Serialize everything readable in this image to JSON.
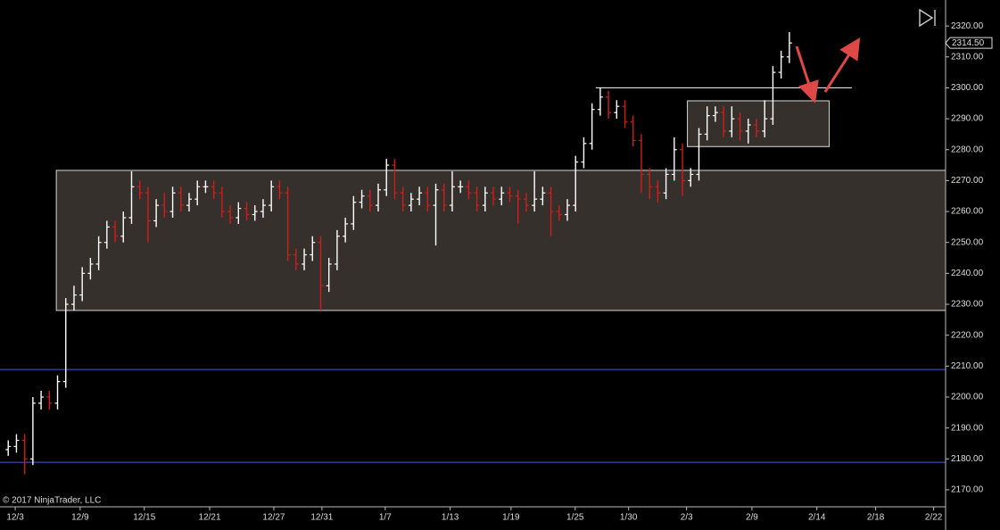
{
  "chart_data": {
    "type": "ohlc",
    "copyright": "© 2017 NinjaTrader, LLC",
    "up_color": "#ffffff",
    "down_color": "#d01c1c",
    "xlim": [
      0,
      230
    ],
    "ylim": [
      2164.5,
      2328.4
    ],
    "xticks": [
      {
        "value": 3.7,
        "label": "12/3"
      },
      {
        "value": 19.5,
        "label": "12/9"
      },
      {
        "value": 35.1,
        "label": "12/15"
      },
      {
        "value": 51,
        "label": "12/21"
      },
      {
        "value": 66.6,
        "label": "12/27"
      },
      {
        "value": 78.3,
        "label": "12/31"
      },
      {
        "value": 93.7,
        "label": "1/7"
      },
      {
        "value": 109.5,
        "label": "1/13"
      },
      {
        "value": 124.3,
        "label": "1/19"
      },
      {
        "value": 139.9,
        "label": "1/25"
      },
      {
        "value": 152.9,
        "label": "1/30"
      },
      {
        "value": 167,
        "label": "2/3"
      },
      {
        "value": 182.9,
        "label": "2/9"
      },
      {
        "value": 198.7,
        "label": "2/14"
      },
      {
        "value": 213,
        "label": "2/18"
      },
      {
        "value": 227.1,
        "label": "2/22"
      }
    ],
    "yticks": [
      {
        "value": 2170,
        "label": "2170.00"
      },
      {
        "value": 2180,
        "label": "2180.00"
      },
      {
        "value": 2190,
        "label": "2190.00"
      },
      {
        "value": 2200,
        "label": "2200.00"
      },
      {
        "value": 2210,
        "label": "2210.00"
      },
      {
        "value": 2220,
        "label": "2220.00"
      },
      {
        "value": 2230,
        "label": "2230.00"
      },
      {
        "value": 2240,
        "label": "2240.00"
      },
      {
        "value": 2250,
        "label": "2250.00"
      },
      {
        "value": 2260,
        "label": "2260.00"
      },
      {
        "value": 2270,
        "label": "2270.00"
      },
      {
        "value": 2280,
        "label": "2280.00"
      },
      {
        "value": 2290,
        "label": "2290.00"
      },
      {
        "value": 2300,
        "label": "2300.00"
      },
      {
        "value": 2310,
        "label": "2310.00"
      },
      {
        "value": 2320,
        "label": "2320.00"
      }
    ],
    "last_price": {
      "value": 2314.5,
      "label": "2314.50"
    },
    "x": [
      2,
      4,
      6,
      8,
      10,
      12,
      14,
      16,
      18,
      20,
      22,
      24,
      26,
      28,
      30,
      32,
      34,
      36,
      38,
      40,
      42,
      44,
      46,
      48,
      50,
      52,
      54,
      56,
      58,
      60,
      62,
      64,
      66,
      68,
      70,
      72,
      74,
      76,
      78,
      80,
      82,
      84,
      86,
      88,
      90,
      92,
      94,
      96,
      98,
      100,
      102,
      104,
      106,
      108,
      110,
      112,
      114,
      116,
      118,
      120,
      122,
      124,
      126,
      128,
      130,
      132,
      134,
      136,
      138,
      140,
      142,
      144,
      146,
      148,
      150,
      152,
      154,
      156,
      158,
      160,
      162,
      164,
      166,
      168,
      170,
      172,
      174,
      176,
      178,
      180,
      182,
      184,
      186,
      188,
      190,
      192
    ],
    "open": [
      2183,
      2184,
      2186,
      2180,
      2198,
      2200,
      2198,
      2205,
      2230,
      2233,
      2240,
      2243,
      2250,
      2255,
      2252,
      2258,
      2268,
      2266,
      2257,
      2262,
      2260,
      2266,
      2262,
      2264,
      2268,
      2268,
      2266,
      2260,
      2258,
      2261,
      2259,
      2260,
      2262,
      2268,
      2266,
      2246,
      2243,
      2246,
      2250,
      2236,
      2243,
      2252,
      2256,
      2263,
      2265,
      2262,
      2267,
      2275,
      2266,
      2262,
      2264,
      2266,
      2262,
      2267,
      2262,
      2268,
      2268,
      2266,
      2262,
      2266,
      2264,
      2266,
      2265,
      2264,
      2262,
      2264,
      2266,
      2260,
      2259,
      2262,
      2276,
      2282,
      2293,
      2297,
      2292,
      2294,
      2289,
      2283,
      2272,
      2268,
      2266,
      2272,
      2280,
      2270,
      2272,
      2285,
      2291,
      2292,
      2286,
      2290,
      2286,
      2288,
      2286,
      2290,
      2305,
      2310
    ],
    "high": [
      2186,
      2188,
      2188,
      2200,
      2202,
      2202,
      2207,
      2232,
      2236,
      2242,
      2245,
      2252,
      2257,
      2257,
      2260,
      2273,
      2270,
      2268,
      2264,
      2266,
      2268,
      2268,
      2266,
      2270,
      2270,
      2270,
      2268,
      2262,
      2263,
      2263,
      2262,
      2264,
      2270,
      2270,
      2268,
      2248,
      2248,
      2252,
      2252,
      2245,
      2254,
      2258,
      2265,
      2267,
      2267,
      2269,
      2277,
      2277,
      2268,
      2266,
      2268,
      2268,
      2269,
      2269,
      2273,
      2270,
      2270,
      2268,
      2268,
      2268,
      2268,
      2268,
      2267,
      2266,
      2273,
      2268,
      2268,
      2262,
      2264,
      2278,
      2284,
      2295,
      2300,
      2299,
      2296,
      2296,
      2291,
      2285,
      2274,
      2270,
      2274,
      2284,
      2282,
      2274,
      2287,
      2294,
      2294,
      2294,
      2294,
      2292,
      2290,
      2290,
      2296,
      2307,
      2312,
      2318
    ],
    "low": [
      2181,
      2182,
      2175,
      2178,
      2196,
      2196,
      2196,
      2203,
      2228,
      2231,
      2238,
      2241,
      2248,
      2250,
      2250,
      2256,
      2264,
      2250,
      2255,
      2258,
      2258,
      2260,
      2260,
      2262,
      2266,
      2264,
      2258,
      2256,
      2256,
      2257,
      2257,
      2258,
      2260,
      2264,
      2244,
      2241,
      2241,
      2244,
      2228,
      2234,
      2241,
      2250,
      2254,
      2261,
      2260,
      2260,
      2265,
      2264,
      2260,
      2260,
      2262,
      2260,
      2249,
      2260,
      2260,
      2266,
      2264,
      2260,
      2260,
      2262,
      2262,
      2263,
      2256,
      2260,
      2260,
      2262,
      2252,
      2257,
      2257,
      2260,
      2274,
      2280,
      2291,
      2290,
      2290,
      2287,
      2281,
      2266,
      2264,
      2263,
      2264,
      2270,
      2265,
      2268,
      2270,
      2283,
      2289,
      2284,
      2284,
      2283,
      2282,
      2284,
      2284,
      2288,
      2303,
      2308
    ],
    "close": [
      2184,
      2186,
      2180,
      2198,
      2200,
      2198,
      2205,
      2230,
      2233,
      2240,
      2243,
      2250,
      2255,
      2252,
      2258,
      2268,
      2266,
      2257,
      2262,
      2260,
      2266,
      2262,
      2264,
      2268,
      2268,
      2266,
      2260,
      2258,
      2261,
      2259,
      2260,
      2262,
      2268,
      2266,
      2246,
      2243,
      2246,
      2250,
      2236,
      2243,
      2252,
      2256,
      2263,
      2265,
      2262,
      2267,
      2275,
      2266,
      2262,
      2264,
      2266,
      2262,
      2267,
      2262,
      2268,
      2268,
      2266,
      2262,
      2266,
      2264,
      2266,
      2265,
      2264,
      2262,
      2264,
      2266,
      2260,
      2259,
      2262,
      2276,
      2282,
      2293,
      2297,
      2292,
      2294,
      2289,
      2283,
      2272,
      2268,
      2266,
      2272,
      2280,
      2270,
      2272,
      2285,
      2291,
      2292,
      2286,
      2290,
      2286,
      2288,
      2286,
      2290,
      2305,
      2310,
      2314.5
    ],
    "zones": [
      {
        "x0": 13.7,
        "x1": 230,
        "y0": 2228,
        "y1": 2273.3
      },
      {
        "x0": 167.2,
        "x1": 201.7,
        "y0": 2281,
        "y1": 2295.8
      }
    ],
    "segments": [
      {
        "x0": 144.9,
        "x1": 207.2,
        "y": 2300,
        "color": "#ffffff"
      },
      {
        "x0": 0,
        "x1": 230,
        "y": 2208.9,
        "color": "#4a5ad8"
      },
      {
        "x0": 0,
        "x1": 230,
        "y": 2178.9,
        "color": "#4a5ad8"
      }
    ]
  }
}
